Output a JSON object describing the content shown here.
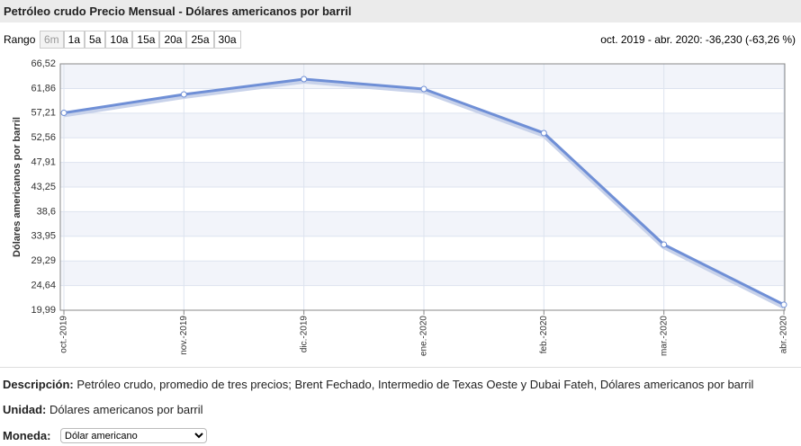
{
  "header": {
    "title": "Petróleo crudo Precio Mensual - Dólares americanos por barril"
  },
  "range": {
    "label": "Rango",
    "buttons": [
      "6m",
      "1a",
      "5a",
      "10a",
      "15a",
      "20a",
      "25a",
      "30a"
    ],
    "summary": "oct. 2019 - abr. 2020: -36,230 (-63,26 %)"
  },
  "chart_data": {
    "type": "line",
    "y_label": "Dólares americanos por barril",
    "categories": [
      "oct.-2019",
      "nov.-2019",
      "dic.-2019",
      "ene.-2020",
      "feb.-2020",
      "mar.-2020",
      "abr.-2020"
    ],
    "series": [
      {
        "name": "Petróleo crudo",
        "color": "#6f8fd6",
        "values": [
          57.27,
          60.75,
          63.63,
          61.77,
          53.45,
          32.39,
          21.04
        ]
      }
    ],
    "ylim": [
      19.99,
      66.52
    ],
    "yticks": [
      {
        "value": 19.99,
        "label": "19,99"
      },
      {
        "value": 24.64,
        "label": "24,64"
      },
      {
        "value": 29.29,
        "label": "29,29"
      },
      {
        "value": 33.95,
        "label": "33,95"
      },
      {
        "value": 38.6,
        "label": "38,6"
      },
      {
        "value": 43.25,
        "label": "43,25"
      },
      {
        "value": 47.91,
        "label": "47,91"
      },
      {
        "value": 52.56,
        "label": "52,56"
      },
      {
        "value": 57.21,
        "label": "57,21"
      },
      {
        "value": 61.86,
        "label": "61,86"
      },
      {
        "value": 66.52,
        "label": "66,52"
      }
    ],
    "grid": true
  },
  "description": {
    "label": "Descripción:",
    "text": "Petróleo crudo, promedio de tres precios; Brent Fechado, Intermedio de Texas Oeste y Dubai Fateh, Dólares americanos por barril"
  },
  "unit": {
    "label": "Unidad:",
    "text": "Dólares americanos por barril"
  },
  "currency": {
    "label": "Moneda:",
    "value": "Dólar americano"
  }
}
